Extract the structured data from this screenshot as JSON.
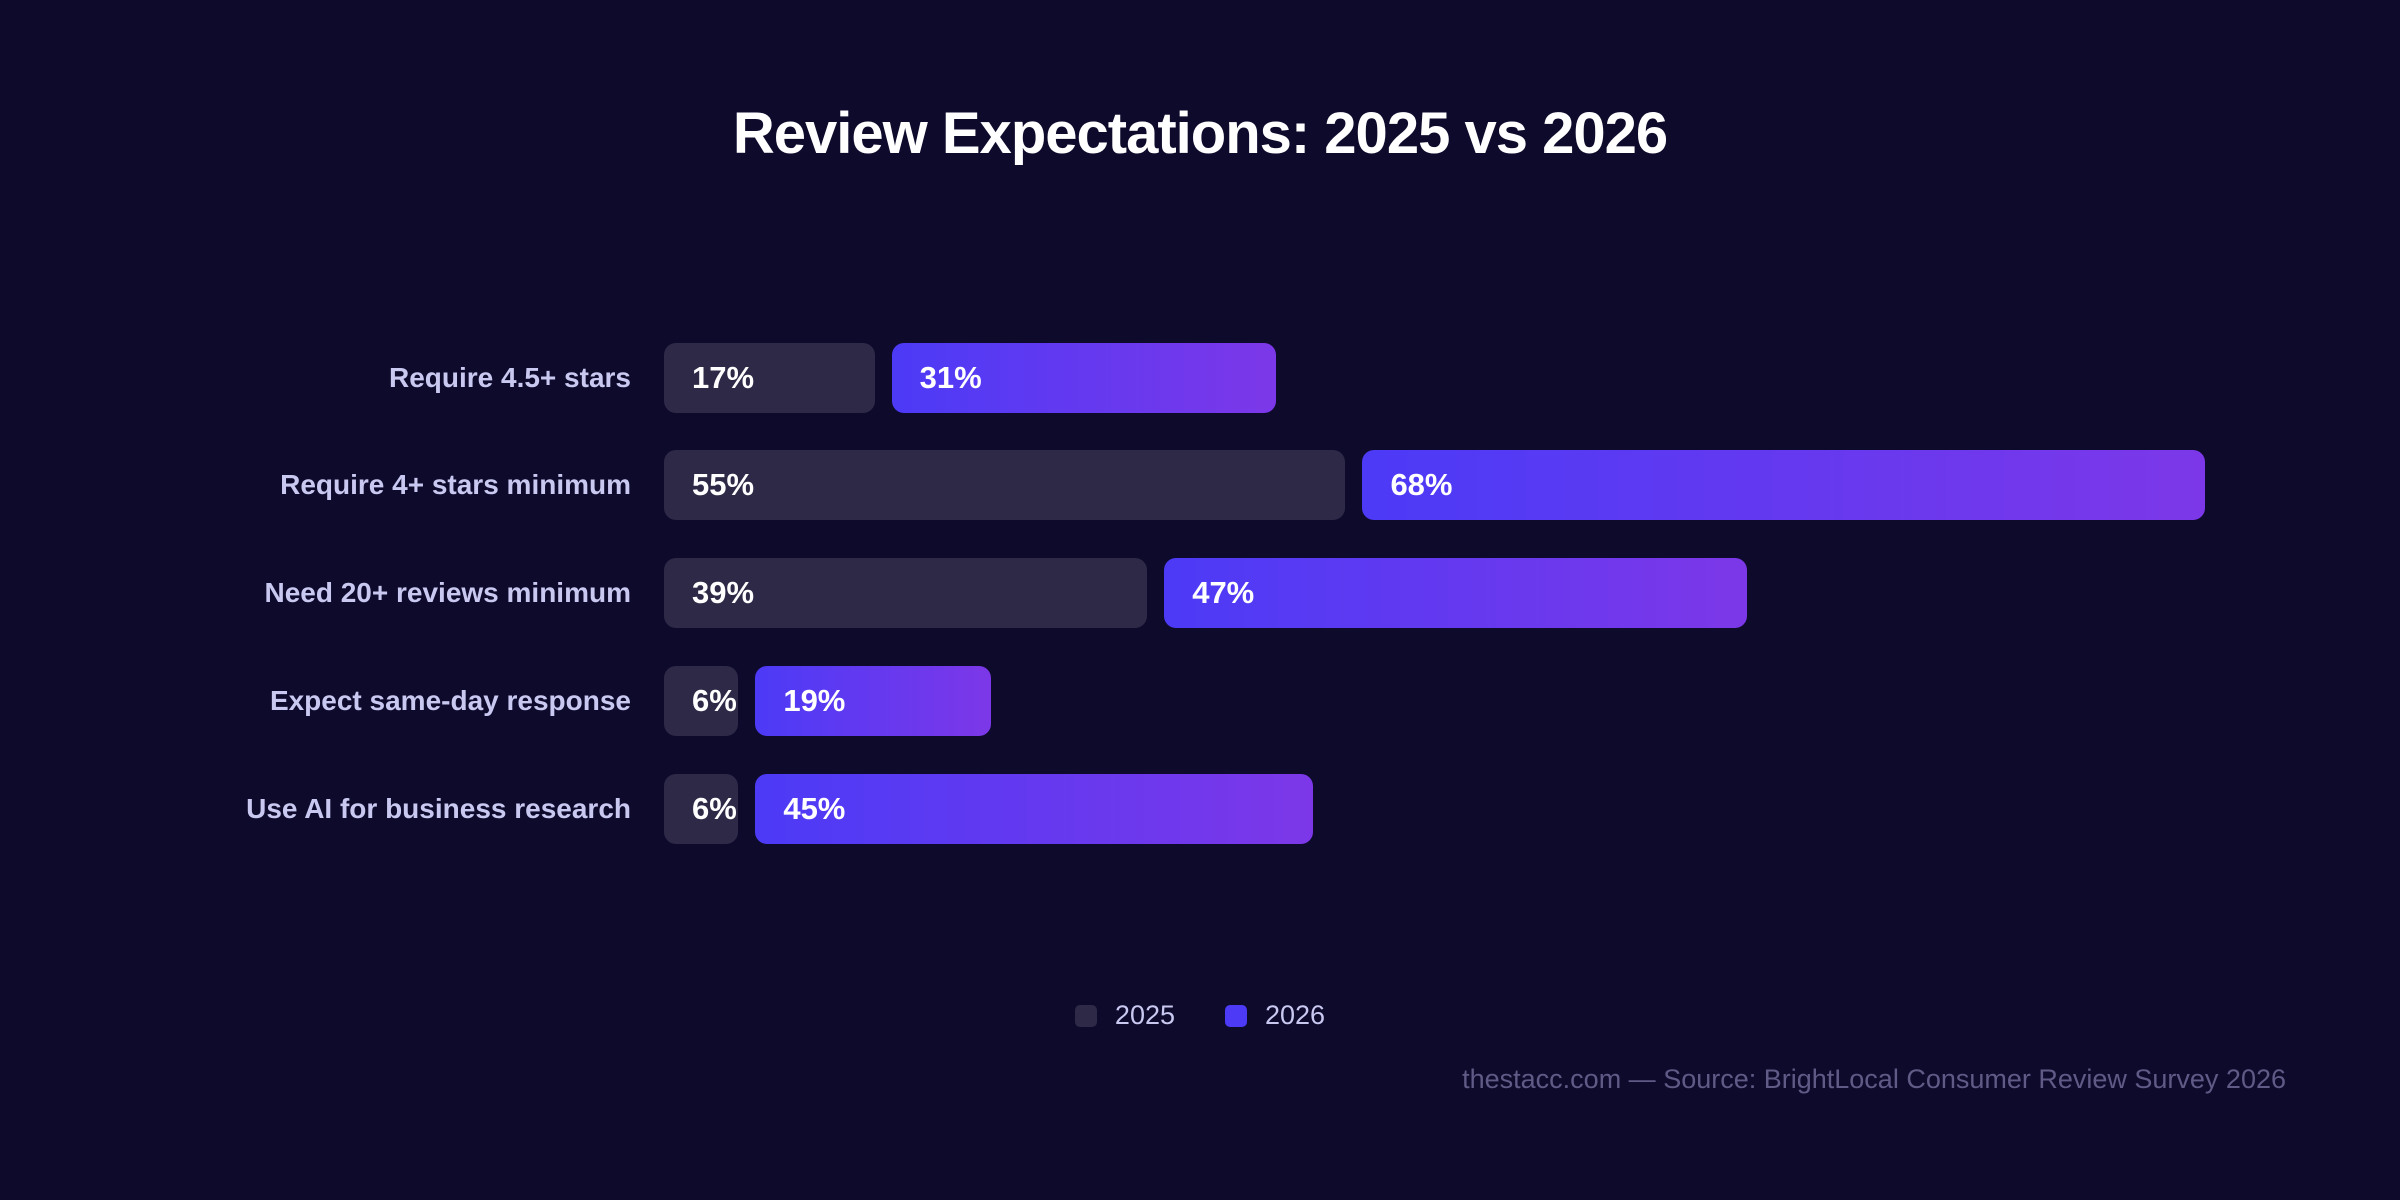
{
  "chart_data": {
    "type": "bar",
    "orientation": "horizontal",
    "title": "Review Expectations: 2025 vs 2026",
    "categories": [
      "Require 4.5+ stars",
      "Require 4+ stars minimum",
      "Need 20+ reviews minimum",
      "Expect same-day response",
      "Use AI for business research"
    ],
    "series": [
      {
        "name": "2025",
        "values": [
          17,
          55,
          39,
          6,
          6
        ],
        "color": "#2d2947"
      },
      {
        "name": "2026",
        "values": [
          31,
          68,
          47,
          19,
          45
        ],
        "color": "#4c3af7"
      }
    ],
    "value_suffix": "%",
    "legend_position": "bottom-center",
    "grid": false
  },
  "footer": {
    "source": "thestacc.com — Source: BrightLocal Consumer Review Survey 2026"
  }
}
